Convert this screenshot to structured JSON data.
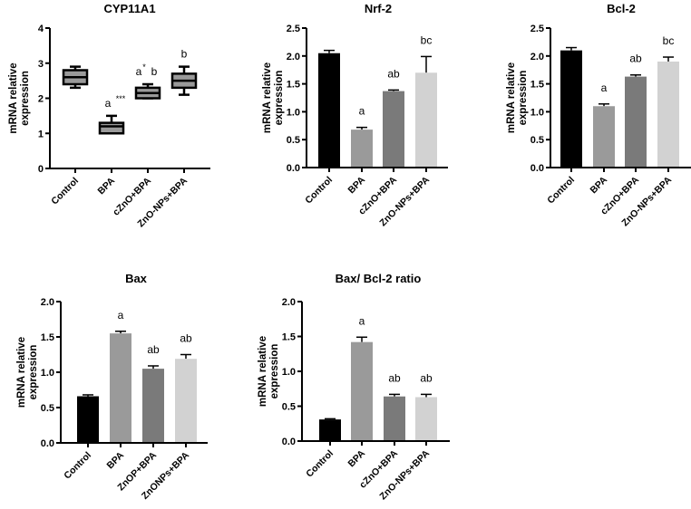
{
  "chart_data": [
    {
      "type": "box",
      "title": "CYP11A1",
      "ylabel": [
        "mRNA relative",
        "expression"
      ],
      "ylim": [
        0,
        4
      ],
      "yticks": [
        "0",
        "1",
        "2",
        "3",
        "4"
      ],
      "categories": [
        "Control",
        "BPA",
        "cZnO+BPA",
        "ZnO-NPs+BPA"
      ],
      "boxes": [
        {
          "min": 2.3,
          "q1": 2.4,
          "median": 2.6,
          "q3": 2.8,
          "max": 2.9
        },
        {
          "min": 1.0,
          "q1": 1.0,
          "median": 1.2,
          "q3": 1.3,
          "max": 1.5
        },
        {
          "min": 2.0,
          "q1": 2.0,
          "median": 2.15,
          "q3": 2.3,
          "max": 2.4
        },
        {
          "min": 2.1,
          "q1": 2.3,
          "median": 2.5,
          "q3": 2.7,
          "max": 2.9
        }
      ],
      "annotations": [
        {
          "letters": "",
          "stars": ""
        },
        {
          "letters": "a",
          "stars": "***"
        },
        {
          "letters": "a",
          "stars": "*",
          "suffix": "b"
        },
        {
          "letters": "b",
          "stars": ""
        }
      ],
      "colors": {
        "box": "#9a9a9a"
      }
    },
    {
      "type": "bar",
      "title": "Nrf-2",
      "ylabel": [
        "mRNA relative",
        "expression"
      ],
      "ylim": [
        0,
        2.5
      ],
      "yticks": [
        "0.0",
        "0.5",
        "1.0",
        "1.5",
        "2.0",
        "2.5"
      ],
      "categories": [
        "Control",
        "BPA",
        "cZnO+BPA",
        "ZnO-NPs+BPA"
      ],
      "values": [
        2.05,
        0.68,
        1.37,
        1.7
      ],
      "errors": [
        0.05,
        0.04,
        0.02,
        0.29
      ],
      "annotations": [
        "",
        "a",
        "ab",
        "bc"
      ]
    },
    {
      "type": "bar",
      "title": "Bcl-2",
      "ylabel": [
        "mRNA relative",
        "expression"
      ],
      "ylim": [
        0,
        2.5
      ],
      "yticks": [
        "0.0",
        "0.5",
        "1.0",
        "1.5",
        "2.0",
        "2.5"
      ],
      "categories": [
        "Control",
        "BPA",
        "cZnO+BPA",
        "ZnO-NPs+BPA"
      ],
      "values": [
        2.1,
        1.1,
        1.63,
        1.9
      ],
      "errors": [
        0.05,
        0.04,
        0.03,
        0.08
      ],
      "annotations": [
        "",
        "a",
        "ab",
        "bc"
      ]
    },
    {
      "type": "bar",
      "title": "Bax",
      "ylabel": [
        "mRNA relative",
        "expression"
      ],
      "ylim": [
        0,
        2.0
      ],
      "yticks": [
        "0.0",
        "0.5",
        "1.0",
        "1.5",
        "2.0"
      ],
      "categories": [
        "Control",
        "BPA",
        "ZnOP+BPA",
        "ZnONPs+BPA"
      ],
      "values": [
        0.66,
        1.55,
        1.05,
        1.19
      ],
      "errors": [
        0.02,
        0.03,
        0.04,
        0.06
      ],
      "annotations": [
        "",
        "a",
        "ab",
        "ab"
      ]
    },
    {
      "type": "bar",
      "title": "Bax/ Bcl-2 ratio",
      "ylabel": [
        "mRNA relative",
        "expression"
      ],
      "ylim": [
        0,
        2.0
      ],
      "yticks": [
        "0.0",
        "0.5",
        "1.0",
        "1.5",
        "2.0"
      ],
      "categories": [
        "Control",
        "BPA",
        "cZnO+BPA",
        "ZnO-NPs+BPA"
      ],
      "values": [
        0.31,
        1.42,
        0.64,
        0.63
      ],
      "errors": [
        0.01,
        0.07,
        0.03,
        0.04
      ],
      "annotations": [
        "",
        "a",
        "ab",
        "ab"
      ]
    }
  ],
  "colors": {
    "series": [
      "#000000",
      "#9a9a9a",
      "#7a7a7a",
      "#d2d2d2"
    ]
  }
}
